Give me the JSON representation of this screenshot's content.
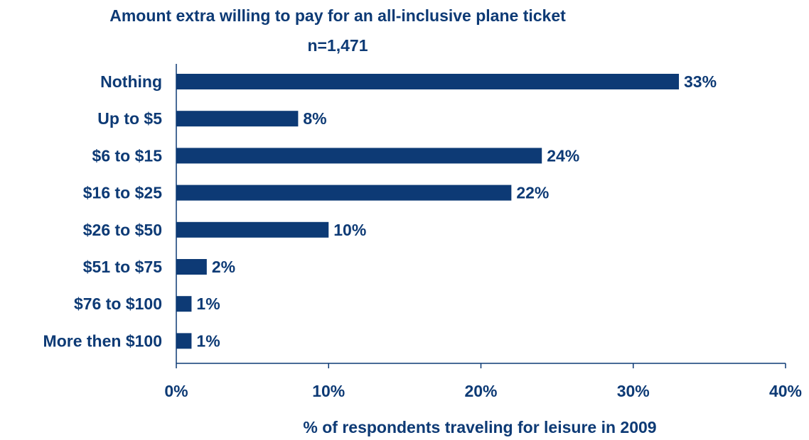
{
  "chart_data": {
    "type": "bar",
    "orientation": "horizontal",
    "title": "Amount extra willing to pay for an all-inclusive plane ticket",
    "subtitle": "n=1,471",
    "categories": [
      "Nothing",
      "Up to $5",
      "$6 to $15",
      "$16 to $25",
      "$26 to $50",
      "$51 to $75",
      "$76 to $100",
      "More then $100"
    ],
    "values": [
      33,
      8,
      24,
      22,
      10,
      2,
      1,
      1
    ],
    "data_labels": [
      "33%",
      "8%",
      "24%",
      "22%",
      "10%",
      "2%",
      "1%",
      "1%"
    ],
    "xlim": [
      0,
      40
    ],
    "xticks": [
      0,
      10,
      20,
      30,
      40
    ],
    "xtick_labels": [
      "0%",
      "10%",
      "20%",
      "30%",
      "40%"
    ],
    "xlabel": "% of respondents traveling for leisure in 2009",
    "ylabel": "",
    "grid": false,
    "legend": "none"
  },
  "colors": {
    "bar": "#0D3A75",
    "text": "#0D3A75",
    "axis": "#0D3A75"
  }
}
